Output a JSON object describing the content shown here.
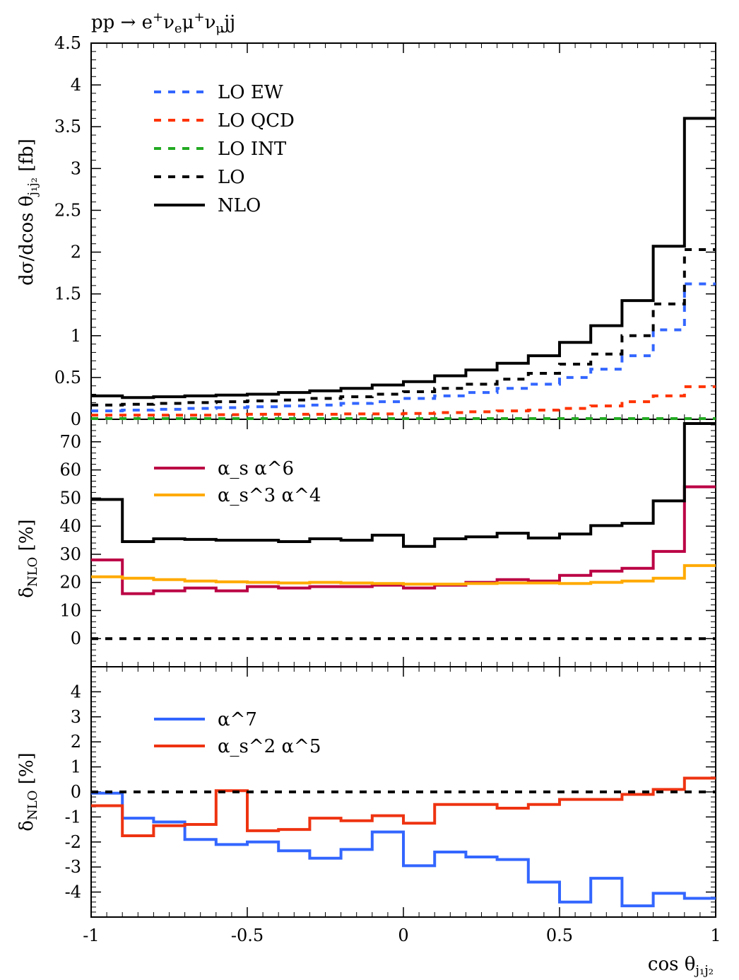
{
  "chart_data": [
    {
      "type": "line",
      "panel": "main",
      "title": "pp → e⁺νₑμ⁺ν_μjj",
      "ylabel": "dσ/dcos θ_j1j2 [fb]",
      "xlabel": "",
      "ylim": [
        0,
        4.5
      ],
      "xlim": [
        -1,
        1
      ],
      "yticks": [
        "0",
        "0.5",
        "1",
        "1.5",
        "2",
        "2.5",
        "3",
        "3.5",
        "4",
        "4.5"
      ],
      "bin_edges": [
        -1,
        -0.9,
        -0.8,
        -0.7,
        -0.6,
        -0.5,
        -0.4,
        -0.3,
        -0.2,
        -0.1,
        0,
        0.1,
        0.2,
        0.3,
        0.4,
        0.5,
        0.6,
        0.7,
        0.8,
        0.9,
        1
      ],
      "legend_position": "top-left",
      "series": [
        {
          "name": "LO EW",
          "color": "#3366ff",
          "dashed": true,
          "values": [
            0.1,
            0.11,
            0.12,
            0.13,
            0.14,
            0.15,
            0.16,
            0.17,
            0.19,
            0.21,
            0.25,
            0.28,
            0.32,
            0.37,
            0.42,
            0.5,
            0.6,
            0.76,
            1.07,
            1.62
          ]
        },
        {
          "name": "LO QCD",
          "color": "#ff3300",
          "dashed": true,
          "values": [
            0.05,
            0.05,
            0.05,
            0.05,
            0.055,
            0.06,
            0.06,
            0.06,
            0.065,
            0.065,
            0.07,
            0.08,
            0.09,
            0.1,
            0.11,
            0.13,
            0.16,
            0.21,
            0.28,
            0.39
          ]
        },
        {
          "name": "LO INT",
          "color": "#22aa22",
          "dashed": true,
          "values": [
            0.005,
            0.005,
            0.005,
            0.005,
            0.005,
            0.005,
            0.005,
            0.005,
            0.005,
            0.005,
            0.005,
            0.005,
            0.005,
            0.005,
            0.005,
            0.005,
            0.005,
            0.005,
            0.005,
            0.005
          ]
        },
        {
          "name": "LO",
          "color": "#000000",
          "dashed": true,
          "values": [
            0.17,
            0.18,
            0.19,
            0.2,
            0.21,
            0.22,
            0.23,
            0.25,
            0.27,
            0.3,
            0.33,
            0.37,
            0.42,
            0.48,
            0.55,
            0.66,
            0.78,
            1.0,
            1.38,
            2.03
          ]
        },
        {
          "name": "NLO",
          "color": "#000000",
          "dashed": false,
          "values": [
            0.28,
            0.26,
            0.27,
            0.28,
            0.29,
            0.3,
            0.32,
            0.34,
            0.37,
            0.41,
            0.45,
            0.52,
            0.59,
            0.67,
            0.76,
            0.92,
            1.12,
            1.42,
            2.07,
            3.6
          ]
        }
      ]
    },
    {
      "type": "line",
      "panel": "ratio1",
      "ylabel": "δ_NLO [%]",
      "ylim": [
        -10,
        78
      ],
      "xlim": [
        -1,
        1
      ],
      "yticks": [
        "0",
        "10",
        "20",
        "30",
        "40",
        "50",
        "60",
        "70"
      ],
      "bin_edges": [
        -1,
        -0.9,
        -0.8,
        -0.7,
        -0.6,
        -0.5,
        -0.4,
        -0.3,
        -0.2,
        -0.1,
        0,
        0.1,
        0.2,
        0.3,
        0.4,
        0.5,
        0.6,
        0.7,
        0.8,
        0.9,
        1
      ],
      "legend_position": "top-left",
      "series": [
        {
          "name": "α_s α^6",
          "color": "#bb0044",
          "dashed": false,
          "values": [
            28,
            16,
            17,
            18,
            17,
            18.5,
            18,
            18.5,
            18.5,
            19,
            18,
            19,
            20,
            21,
            20.5,
            22.5,
            24,
            25,
            31,
            54
          ]
        },
        {
          "name": "α_s^3 α^4",
          "color": "#ffaa00",
          "dashed": false,
          "values": [
            22,
            21.5,
            21,
            20.5,
            20.2,
            20,
            19.8,
            20,
            19.8,
            19.6,
            19.4,
            19.4,
            19.6,
            19.8,
            19.8,
            19.6,
            20,
            20.5,
            21.5,
            26
          ]
        },
        {
          "name": "",
          "color": "#000000",
          "dashed": false,
          "values": [
            49.5,
            34.5,
            35.5,
            35.3,
            35,
            35,
            34.5,
            35.5,
            35,
            36.8,
            32.8,
            35.5,
            36.2,
            37.5,
            35.8,
            37.2,
            40.2,
            41,
            49,
            76.5
          ]
        },
        {
          "name": "",
          "color": "#000000",
          "dashed": true,
          "values": [
            0,
            0,
            0,
            0,
            0,
            0,
            0,
            0,
            0,
            0,
            0,
            0,
            0,
            0,
            0,
            0,
            0,
            0,
            0,
            0
          ]
        }
      ]
    },
    {
      "type": "line",
      "panel": "ratio2",
      "ylabel": "δ_NLO [%]",
      "xlabel": "cos θ_j1j2",
      "ylim": [
        -5,
        5
      ],
      "xlim": [
        -1,
        1
      ],
      "yticks": [
        "-4",
        "-3",
        "-2",
        "-1",
        "0",
        "1",
        "2",
        "3",
        "4"
      ],
      "xticks": [
        "-1",
        "-0.5",
        "0",
        "0.5",
        "1"
      ],
      "bin_edges": [
        -1,
        -0.9,
        -0.8,
        -0.7,
        -0.6,
        -0.5,
        -0.4,
        -0.3,
        -0.2,
        -0.1,
        0,
        0.1,
        0.2,
        0.3,
        0.4,
        0.5,
        0.6,
        0.7,
        0.8,
        0.9,
        1
      ],
      "legend_position": "top-left",
      "series": [
        {
          "name": "α^7",
          "color": "#3366ff",
          "dashed": false,
          "values": [
            -0.05,
            -1.05,
            -1.2,
            -1.9,
            -2.1,
            -2.0,
            -2.35,
            -2.65,
            -2.3,
            -1.6,
            -2.95,
            -2.4,
            -2.6,
            -2.7,
            -3.6,
            -4.4,
            -3.45,
            -4.55,
            -4.05,
            -4.25
          ]
        },
        {
          "name": "α_s^2 α^5",
          "color": "#ee3311",
          "dashed": false,
          "values": [
            -0.55,
            -1.75,
            -1.35,
            -1.3,
            0.05,
            -1.55,
            -1.5,
            -1.05,
            -1.15,
            -0.95,
            -1.25,
            -0.5,
            -0.5,
            -0.65,
            -0.5,
            -0.3,
            -0.3,
            -0.1,
            0.1,
            0.55
          ]
        },
        {
          "name": "",
          "color": "#000000",
          "dashed": true,
          "values": [
            0,
            0,
            0,
            0,
            0,
            0,
            0,
            0,
            0,
            0,
            0,
            0,
            0,
            0,
            0,
            0,
            0,
            0,
            0,
            0
          ]
        }
      ]
    }
  ]
}
